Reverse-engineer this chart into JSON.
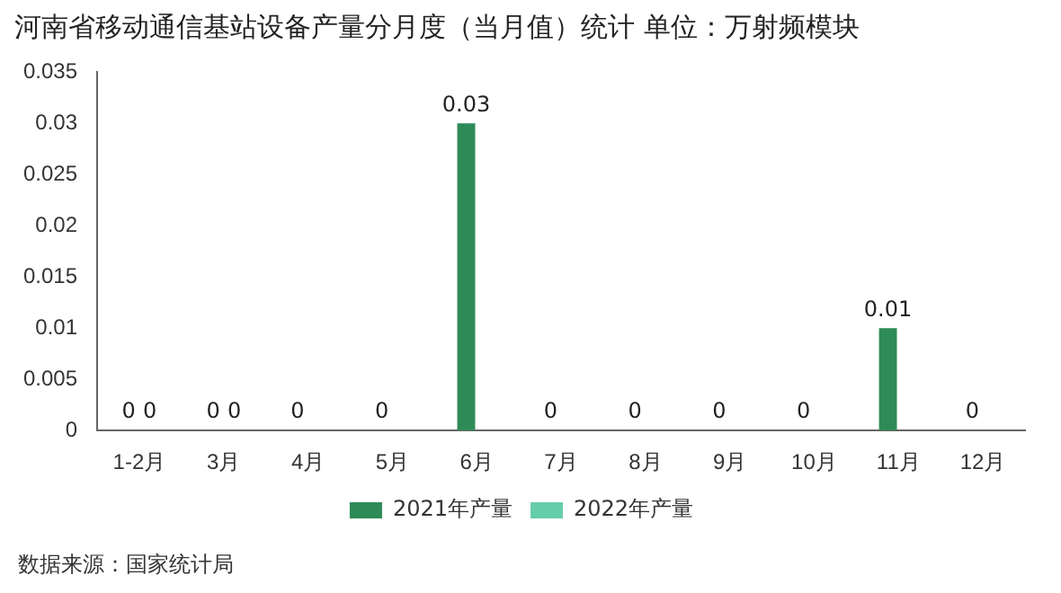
{
  "chart_data": {
    "type": "bar",
    "title": "河南省移动通信基站设备产量分月度（当月值）统计  单位：万射频模块",
    "categories": [
      "1-2月",
      "3月",
      "4月",
      "5月",
      "6月",
      "7月",
      "8月",
      "9月",
      "10月",
      "11月",
      "12月"
    ],
    "series": [
      {
        "name": "2021年产量",
        "color": "#2e8b57",
        "values": [
          0,
          0,
          0,
          0,
          0.03,
          0,
          0,
          0,
          0,
          0.01,
          0
        ]
      },
      {
        "name": "2022年产量",
        "color": "#66cdaa",
        "values": [
          0,
          0,
          null,
          null,
          null,
          null,
          null,
          null,
          null,
          null,
          null
        ]
      }
    ],
    "ylim": [
      0,
      0.035
    ],
    "yticks": [
      0,
      0.005,
      0.01,
      0.015,
      0.02,
      0.025,
      0.03,
      0.035
    ],
    "grid": false,
    "legend": "bottom",
    "data_labels": true,
    "annotations": [
      "数据来源：国家统计局"
    ]
  }
}
